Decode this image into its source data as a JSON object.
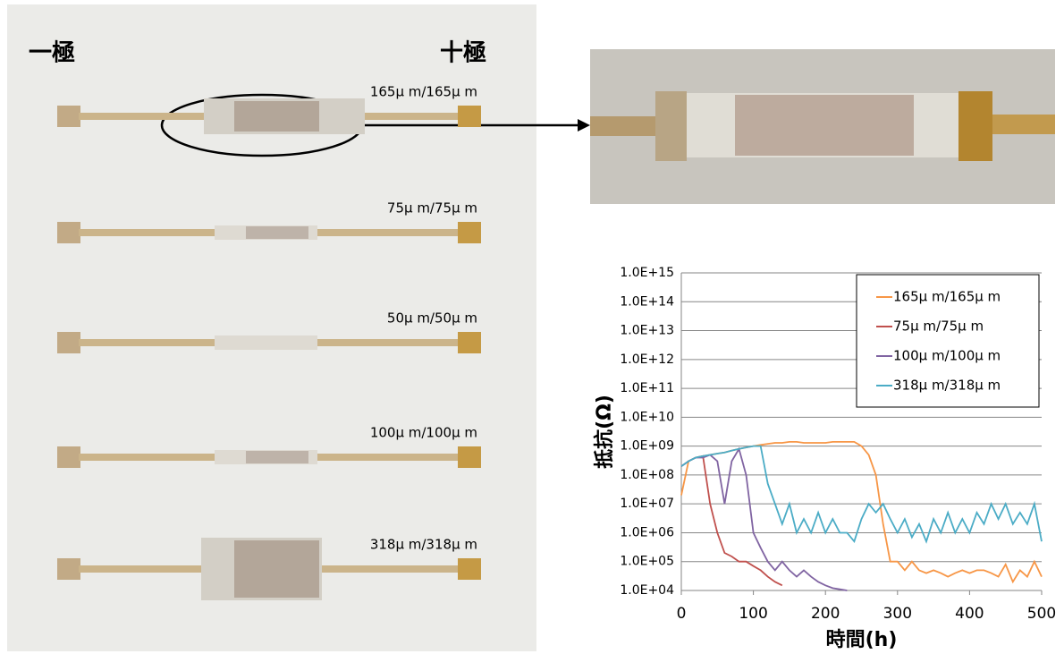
{
  "photo": {
    "minus_label": "一極",
    "plus_label": "十極",
    "samples": [
      "165μ m/165μ m",
      "75μ m/75μ m",
      "50μ m/50μ m",
      "100μ m/100μ m",
      "318μ m/318μ m"
    ]
  },
  "chart_data": {
    "type": "line",
    "xlabel": "時間(h)",
    "ylabel": "抵抗(Ω)",
    "log_y": true,
    "grid": true,
    "legend": "upper right",
    "xlim": [
      0,
      500
    ],
    "xticks": [
      0,
      100,
      200,
      300,
      400,
      500
    ],
    "ylim": [
      10000,
      1000000000000000.0
    ],
    "yticks": [
      {
        "value": 10000.0,
        "label": "1.0E+04"
      },
      {
        "value": 100000.0,
        "label": "1.0E+05"
      },
      {
        "value": 1000000.0,
        "label": "1.0E+06"
      },
      {
        "value": 10000000.0,
        "label": "1.0E+07"
      },
      {
        "value": 100000000.0,
        "label": "1.0E+08"
      },
      {
        "value": 1000000000.0,
        "label": "1.0E+09"
      },
      {
        "value": 10000000000.0,
        "label": "1.0E+10"
      },
      {
        "value": 100000000000.0,
        "label": "1.0E+11"
      },
      {
        "value": 1000000000000.0,
        "label": "1.0E+12"
      },
      {
        "value": 10000000000000.0,
        "label": "1.0E+13"
      },
      {
        "value": 100000000000000.0,
        "label": "1.0E+14"
      },
      {
        "value": 1000000000000000.0,
        "label": "1.0E+15"
      }
    ],
    "x": [
      0,
      10,
      20,
      30,
      40,
      50,
      60,
      70,
      80,
      90,
      100,
      110,
      120,
      130,
      140,
      150,
      160,
      170,
      180,
      190,
      200,
      210,
      220,
      230,
      240,
      250,
      260,
      270,
      280,
      290,
      300,
      310,
      320,
      330,
      340,
      350,
      360,
      370,
      380,
      390,
      400,
      410,
      420,
      430,
      440,
      450,
      460,
      470,
      480,
      490,
      500
    ],
    "series": [
      {
        "name": "165μ m/165μ m",
        "color": "#F79646",
        "values": [
          20000000.0,
          300000000.0,
          400000000.0,
          450000000.0,
          500000000.0,
          550000000.0,
          600000000.0,
          700000000.0,
          800000000.0,
          900000000.0,
          1000000000.0,
          1100000000.0,
          1200000000.0,
          1300000000.0,
          1300000000.0,
          1400000000.0,
          1400000000.0,
          1300000000.0,
          1300000000.0,
          1300000000.0,
          1300000000.0,
          1400000000.0,
          1400000000.0,
          1400000000.0,
          1400000000.0,
          1000000000.0,
          500000000.0,
          100000000.0,
          2000000.0,
          100000.0,
          100000.0,
          50000.0,
          100000.0,
          50000.0,
          40000.0,
          50000.0,
          40000.0,
          30000.0,
          40000.0,
          50000.0,
          40000.0,
          50000.0,
          50000.0,
          40000.0,
          30000.0,
          80000.0,
          20000.0,
          50000.0,
          30000.0,
          100000.0,
          30000.0
        ]
      },
      {
        "name": "75μ m/75μ m",
        "color": "#C0504D",
        "values": [
          200000000.0,
          300000000.0,
          400000000.0,
          450000000.0,
          10000000.0,
          1000000.0,
          200000.0,
          150000.0,
          100000.0,
          100000.0,
          70000.0,
          50000.0,
          30000.0,
          20000.0,
          15000.0,
          null,
          null,
          null,
          null,
          null,
          null,
          null,
          null,
          null,
          null,
          null,
          null,
          null,
          null,
          null,
          null,
          null,
          null,
          null,
          null,
          null,
          null,
          null,
          null,
          null,
          null,
          null,
          null,
          null,
          null,
          null,
          null,
          null,
          null,
          null,
          null
        ]
      },
      {
        "name": "100μ m/100μ m",
        "color": "#8064A2",
        "values": [
          200000000.0,
          300000000.0,
          400000000.0,
          400000000.0,
          500000000.0,
          300000000.0,
          10000000.0,
          300000000.0,
          800000000.0,
          100000000.0,
          1000000.0,
          300000.0,
          100000.0,
          50000.0,
          100000.0,
          50000.0,
          30000.0,
          50000.0,
          30000.0,
          20000.0,
          15000.0,
          12000.0,
          11000.0,
          10000.0,
          null,
          null,
          null,
          null,
          null,
          null,
          null,
          null,
          null,
          null,
          null,
          null,
          null,
          null,
          null,
          null,
          null,
          null,
          null,
          null,
          null,
          null,
          null,
          null,
          null,
          null,
          null
        ]
      },
      {
        "name": "318μ m/318μ m",
        "color": "#4BACC6",
        "values": [
          200000000.0,
          300000000.0,
          400000000.0,
          450000000.0,
          500000000.0,
          550000000.0,
          600000000.0,
          700000000.0,
          800000000.0,
          900000000.0,
          1000000000.0,
          1000000000.0,
          50000000.0,
          10000000.0,
          2000000.0,
          10000000.0,
          1000000.0,
          3000000.0,
          1000000.0,
          5000000.0,
          1000000.0,
          3000000.0,
          1000000.0,
          1000000.0,
          500000.0,
          3000000.0,
          10000000.0,
          5000000.0,
          10000000.0,
          3000000.0,
          1000000.0,
          3000000.0,
          700000.0,
          2000000.0,
          500000.0,
          3000000.0,
          1000000.0,
          5000000.0,
          1000000.0,
          3000000.0,
          1000000.0,
          5000000.0,
          2000000.0,
          10000000.0,
          3000000.0,
          10000000.0,
          2000000.0,
          5000000.0,
          2000000.0,
          10000000.0,
          500000.0
        ]
      }
    ]
  }
}
